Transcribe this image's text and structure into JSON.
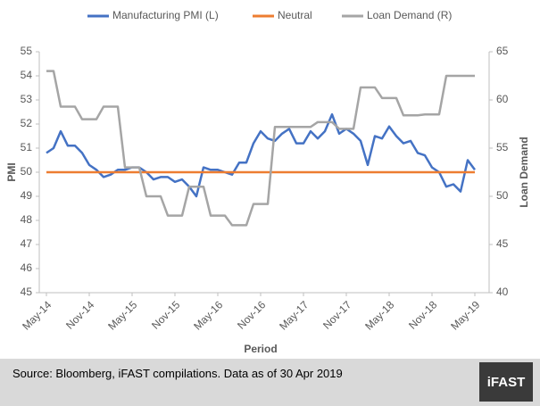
{
  "chart_data": {
    "type": "line",
    "categories": [
      "May-14",
      null,
      null,
      null,
      null,
      null,
      "Nov-14",
      null,
      null,
      null,
      null,
      null,
      "May-15",
      null,
      null,
      null,
      null,
      null,
      "Nov-15",
      null,
      null,
      null,
      null,
      null,
      "May-16",
      null,
      null,
      null,
      null,
      null,
      "Nov-16",
      null,
      null,
      null,
      null,
      null,
      "May-17",
      null,
      null,
      null,
      null,
      null,
      "Nov-17",
      null,
      null,
      null,
      null,
      null,
      "May-18",
      null,
      null,
      null,
      null,
      null,
      "Nov-18",
      null,
      null,
      null,
      null,
      null,
      "May-19"
    ],
    "series": [
      {
        "name": "Manufacturing PMI (L)",
        "color": "#4472c4",
        "values": [
          50.8,
          51.0,
          51.7,
          51.1,
          51.1,
          50.8,
          50.3,
          50.1,
          49.8,
          49.9,
          50.1,
          50.1,
          50.2,
          50.2,
          50.0,
          49.7,
          49.8,
          49.8,
          49.6,
          49.7,
          49.4,
          49.0,
          50.2,
          50.1,
          50.1,
          50.0,
          49.9,
          50.4,
          50.4,
          51.2,
          51.7,
          51.4,
          51.3,
          51.6,
          51.8,
          51.2,
          51.2,
          51.7,
          51.4,
          51.7,
          52.4,
          51.6,
          51.8,
          51.6,
          51.3,
          50.3,
          51.5,
          51.4,
          51.9,
          51.5,
          51.2,
          51.3,
          50.8,
          50.7,
          50.2,
          50.0,
          49.4,
          49.5,
          49.2,
          50.5,
          50.1
        ]
      },
      {
        "name": "Neutral",
        "color": "#ed7d31",
        "values": [
          50,
          50,
          50,
          50,
          50,
          50,
          50,
          50,
          50,
          50,
          50,
          50,
          50,
          50,
          50,
          50,
          50,
          50,
          50,
          50,
          50,
          50,
          50,
          50,
          50,
          50,
          50,
          50,
          50,
          50,
          50,
          50,
          50,
          50,
          50,
          50,
          50,
          50,
          50,
          50,
          50,
          50,
          50,
          50,
          50,
          50,
          50,
          50,
          50,
          50,
          50,
          50,
          50,
          50,
          50,
          50,
          50,
          50,
          50,
          50,
          50
        ]
      },
      {
        "name": "Loan Demand (R)",
        "color": "#a5a5a5",
        "axis": "y2",
        "values": [
          63,
          63,
          59.3,
          59.3,
          59.3,
          58,
          58,
          58,
          59.3,
          59.3,
          59.3,
          53,
          53,
          53,
          50,
          50,
          50,
          48,
          48,
          48,
          51,
          51,
          51,
          48,
          48,
          48,
          47,
          47,
          47,
          49.2,
          49.2,
          49.2,
          57.2,
          57.2,
          57.2,
          57.2,
          57.2,
          57.2,
          57.7,
          57.7,
          57.7,
          57,
          57,
          57,
          61.3,
          61.3,
          61.3,
          60.2,
          60.2,
          60.2,
          58.4,
          58.4,
          58.4,
          58.5,
          58.5,
          58.5,
          62.5,
          62.5,
          62.5,
          62.5,
          62.5
        ]
      }
    ],
    "ylabel": "PMI",
    "y2label": "Loan Demand",
    "xlabel": "Period",
    "ylim": [
      45,
      55
    ],
    "yticks": [
      45,
      46,
      47,
      48,
      49,
      50,
      51,
      52,
      53,
      54,
      55
    ],
    "y2lim": [
      40,
      65
    ],
    "y2ticks": [
      40,
      45,
      50,
      55,
      60,
      65
    ],
    "legend": "top",
    "grid": false
  },
  "footer": {
    "source": "Source: Bloomberg, iFAST compilations. Data as of 30 Apr 2019",
    "logo": "iFAST"
  }
}
